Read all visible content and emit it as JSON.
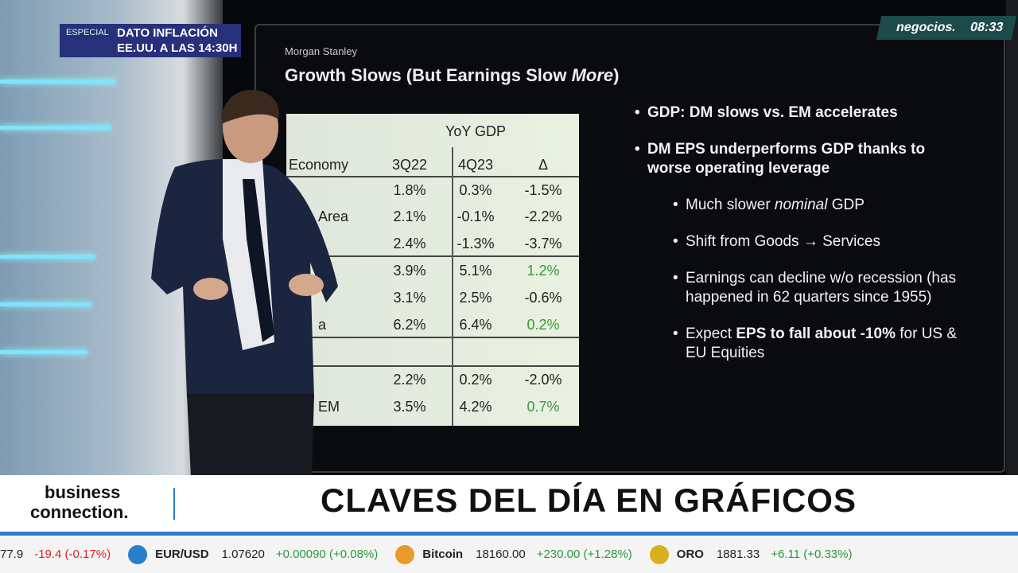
{
  "overlay": {
    "badge": "ESPECIAL",
    "headline_1": "DATO INFLACIÓN",
    "headline_2": "EE.UU. A LAS 14:30H",
    "channel": "negocios.",
    "time": "08:33"
  },
  "slide": {
    "brand": "Morgan Stanley",
    "title": [
      "Growth Slows (But Earnings Slow ",
      "More",
      ")"
    ],
    "table": {
      "group_header": "YoY GDP",
      "columns": [
        "Economy",
        "3Q22",
        "4Q23",
        "Δ"
      ],
      "rows": [
        [
          null,
          "1.8%",
          "0.3%",
          "-1.5%"
        ],
        [
          "Area",
          "2.1%",
          "-0.1%",
          "-2.2%"
        ],
        [
          null,
          "2.4%",
          "-1.3%",
          "-3.7%"
        ],
        [
          null,
          "3.9%",
          "5.1%",
          "1.2%"
        ],
        [
          null,
          "3.1%",
          "2.5%",
          "-0.6%"
        ],
        [
          "a",
          "6.2%",
          "6.4%",
          "0.2%"
        ],
        [
          null,
          "2.2%",
          "0.2%",
          "-2.0%"
        ],
        [
          "EM",
          "3.5%",
          "4.2%",
          "0.7%"
        ]
      ]
    },
    "bullets": [
      {
        "level": 1,
        "parts": [
          "GDP: DM slows vs. EM accelerates"
        ]
      },
      {
        "level": 1,
        "parts": [
          "DM EPS underperforms GDP thanks to worse operating leverage"
        ]
      },
      {
        "level": 2,
        "parts": [
          "Much slower ",
          "nominal",
          " GDP"
        ],
        "emphasis": "italic"
      },
      {
        "level": 2,
        "parts": [
          "Shift from Goods → Services"
        ]
      },
      {
        "level": 2,
        "parts": [
          "Earnings can decline w/o recession (has happened in 62 quarters since 1955)"
        ]
      },
      {
        "level": 2,
        "parts": [
          "Expect ",
          "EPS to fall about -10%",
          " for US & EU Equities"
        ],
        "emphasis": "bold"
      }
    ]
  },
  "lower_third": {
    "show": [
      "business",
      "connection."
    ],
    "headline": "CLAVES DEL DÍA EN GRÁFICOS"
  },
  "ticker": [
    {
      "value": "77.9",
      "change": "-19.4 (-0.17%)"
    },
    {
      "name": "EUR/USD",
      "value": "1.07620",
      "change": "+0.00090 (+0.08%)",
      "icon_color": "#2a7fc9"
    },
    {
      "name": "Bitcoin",
      "value": "18160.00",
      "change": "+230.00 (+1.28%)",
      "icon_color": "#e89a2a"
    },
    {
      "name": "ORO",
      "value": "1881.33",
      "change": "+6.11 (+0.33%)",
      "icon_color": "#d8b020"
    }
  ]
}
